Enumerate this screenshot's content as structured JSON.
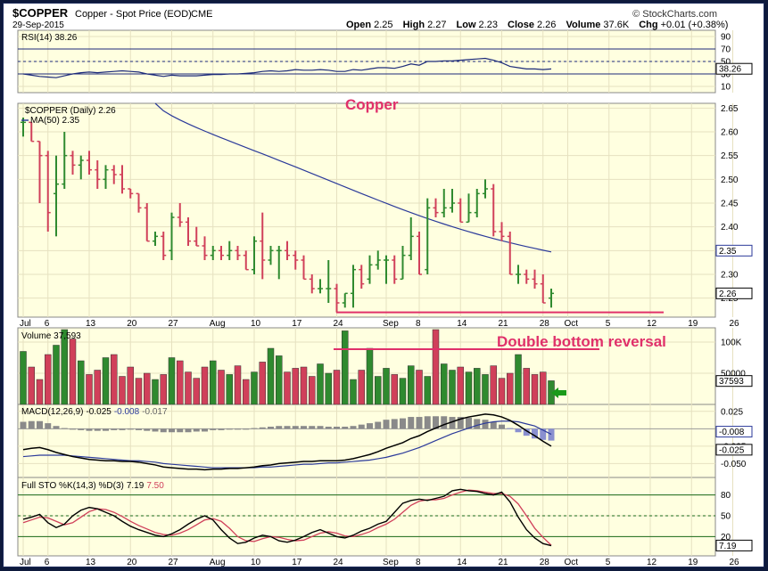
{
  "header": {
    "symbol": "$COPPER",
    "description": "Copper - Spot Price (EOD)",
    "exchange": "CME",
    "date": "29-Sep-2015",
    "watermark": "© StockCharts.com",
    "ohlc": {
      "open_label": "Open",
      "open": "2.25",
      "high_label": "High",
      "high": "2.27",
      "low_label": "Low",
      "low": "2.23",
      "close_label": "Close",
      "close": "2.26",
      "volume_label": "Volume",
      "volume": "37.6K",
      "chg_label": "Chg",
      "chg": "+0.01 (+0.38%)"
    }
  },
  "annotations": {
    "copper": "Copper",
    "double_bottom": "Double bottom reversal"
  },
  "colors": {
    "up": "#2f8a2f",
    "down": "#d0405a",
    "ma": "#2b3a9a",
    "panel_bg": "#ffffe0",
    "annotation": "#e0306a",
    "arrow": "#1a9a1a"
  },
  "chart_data": {
    "type": "ohlc",
    "x_axis": {
      "tick_labels": [
        "Jul",
        "6",
        "13",
        "20",
        "27",
        "Aug",
        "10",
        "17",
        "24",
        "Sep",
        "8",
        "14",
        "21",
        "28",
        "Oct",
        "5",
        "12",
        "19",
        "26"
      ],
      "tick_bars": [
        0,
        3,
        8,
        13,
        18,
        23,
        28,
        33,
        38,
        44,
        48,
        53,
        58,
        63,
        66,
        71,
        76,
        81,
        86
      ]
    },
    "price": {
      "legend": "$COPPER (Daily) 2.26",
      "ma_legend": "MA(50) 2.35",
      "y_ticks": [
        "2.65",
        "2.60",
        "2.55",
        "2.50",
        "2.45",
        "2.40",
        "2.35",
        "2.30",
        "2.25"
      ],
      "ylim": [
        2.21,
        2.66
      ],
      "last_close_label": "2.26",
      "ma_last_label": "2.35",
      "support_level": 2.22,
      "bars": [
        {
          "o": 2.62,
          "h": 2.63,
          "l": 2.59,
          "c": 2.62
        },
        {
          "o": 2.62,
          "h": 2.62,
          "l": 2.58,
          "c": 2.58
        },
        {
          "o": 2.58,
          "h": 2.58,
          "l": 2.45,
          "c": 2.55
        },
        {
          "o": 2.55,
          "h": 2.56,
          "l": 2.39,
          "c": 2.43
        },
        {
          "o": 2.47,
          "h": 2.55,
          "l": 2.38,
          "c": 2.49
        },
        {
          "o": 2.49,
          "h": 2.6,
          "l": 2.48,
          "c": 2.55
        },
        {
          "o": 2.55,
          "h": 2.56,
          "l": 2.51,
          "c": 2.53
        },
        {
          "o": 2.53,
          "h": 2.55,
          "l": 2.5,
          "c": 2.54
        },
        {
          "o": 2.54,
          "h": 2.56,
          "l": 2.51,
          "c": 2.52
        },
        {
          "o": 2.52,
          "h": 2.54,
          "l": 2.48,
          "c": 2.5
        },
        {
          "o": 2.5,
          "h": 2.53,
          "l": 2.48,
          "c": 2.52
        },
        {
          "o": 2.52,
          "h": 2.53,
          "l": 2.49,
          "c": 2.51
        },
        {
          "o": 2.51,
          "h": 2.53,
          "l": 2.47,
          "c": 2.48
        },
        {
          "o": 2.48,
          "h": 2.48,
          "l": 2.46,
          "c": 2.47
        },
        {
          "o": 2.47,
          "h": 2.47,
          "l": 2.43,
          "c": 2.44
        },
        {
          "o": 2.44,
          "h": 2.45,
          "l": 2.37,
          "c": 2.37
        },
        {
          "o": 2.37,
          "h": 2.39,
          "l": 2.36,
          "c": 2.38
        },
        {
          "o": 2.38,
          "h": 2.39,
          "l": 2.33,
          "c": 2.34
        },
        {
          "o": 2.35,
          "h": 2.43,
          "l": 2.33,
          "c": 2.42
        },
        {
          "o": 2.42,
          "h": 2.45,
          "l": 2.4,
          "c": 2.41
        },
        {
          "o": 2.41,
          "h": 2.42,
          "l": 2.36,
          "c": 2.37
        },
        {
          "o": 2.37,
          "h": 2.4,
          "l": 2.36,
          "c": 2.36
        },
        {
          "o": 2.36,
          "h": 2.38,
          "l": 2.33,
          "c": 2.34
        },
        {
          "o": 2.34,
          "h": 2.36,
          "l": 2.33,
          "c": 2.35
        },
        {
          "o": 2.35,
          "h": 2.36,
          "l": 2.33,
          "c": 2.34
        },
        {
          "o": 2.34,
          "h": 2.37,
          "l": 2.33,
          "c": 2.35
        },
        {
          "o": 2.35,
          "h": 2.36,
          "l": 2.33,
          "c": 2.34
        },
        {
          "o": 2.34,
          "h": 2.35,
          "l": 2.31,
          "c": 2.31
        },
        {
          "o": 2.31,
          "h": 2.38,
          "l": 2.3,
          "c": 2.37
        },
        {
          "o": 2.37,
          "h": 2.43,
          "l": 2.29,
          "c": 2.33
        },
        {
          "o": 2.33,
          "h": 2.36,
          "l": 2.32,
          "c": 2.35
        },
        {
          "o": 2.35,
          "h": 2.36,
          "l": 2.29,
          "c": 2.35
        },
        {
          "o": 2.35,
          "h": 2.37,
          "l": 2.33,
          "c": 2.34
        },
        {
          "o": 2.34,
          "h": 2.35,
          "l": 2.31,
          "c": 2.33
        },
        {
          "o": 2.33,
          "h": 2.34,
          "l": 2.29,
          "c": 2.29
        },
        {
          "o": 2.29,
          "h": 2.3,
          "l": 2.26,
          "c": 2.27
        },
        {
          "o": 2.27,
          "h": 2.29,
          "l": 2.26,
          "c": 2.27
        },
        {
          "o": 2.27,
          "h": 2.33,
          "l": 2.24,
          "c": 2.27
        },
        {
          "o": 2.27,
          "h": 2.28,
          "l": 2.22,
          "c": 2.24
        },
        {
          "o": 2.24,
          "h": 2.26,
          "l": 2.23,
          "c": 2.26
        },
        {
          "o": 2.26,
          "h": 2.32,
          "l": 2.23,
          "c": 2.31
        },
        {
          "o": 2.31,
          "h": 2.32,
          "l": 2.27,
          "c": 2.28
        },
        {
          "o": 2.29,
          "h": 2.34,
          "l": 2.28,
          "c": 2.32
        },
        {
          "o": 2.32,
          "h": 2.35,
          "l": 2.31,
          "c": 2.33
        },
        {
          "o": 2.33,
          "h": 2.34,
          "l": 2.28,
          "c": 2.33
        },
        {
          "o": 2.33,
          "h": 2.34,
          "l": 2.28,
          "c": 2.29
        },
        {
          "o": 2.29,
          "h": 2.36,
          "l": 2.29,
          "c": 2.34
        },
        {
          "o": 2.34,
          "h": 2.42,
          "l": 2.33,
          "c": 2.38
        },
        {
          "o": 2.38,
          "h": 2.39,
          "l": 2.3,
          "c": 2.3
        },
        {
          "o": 2.31,
          "h": 2.46,
          "l": 2.3,
          "c": 2.44
        },
        {
          "o": 2.44,
          "h": 2.46,
          "l": 2.42,
          "c": 2.43
        },
        {
          "o": 2.43,
          "h": 2.48,
          "l": 2.42,
          "c": 2.44
        },
        {
          "o": 2.44,
          "h": 2.48,
          "l": 2.43,
          "c": 2.45
        },
        {
          "o": 2.45,
          "h": 2.46,
          "l": 2.41,
          "c": 2.41
        },
        {
          "o": 2.41,
          "h": 2.47,
          "l": 2.41,
          "c": 2.43
        },
        {
          "o": 2.43,
          "h": 2.48,
          "l": 2.42,
          "c": 2.47
        },
        {
          "o": 2.47,
          "h": 2.5,
          "l": 2.46,
          "c": 2.48
        },
        {
          "o": 2.48,
          "h": 2.49,
          "l": 2.38,
          "c": 2.39
        },
        {
          "o": 2.39,
          "h": 2.41,
          "l": 2.37,
          "c": 2.38
        },
        {
          "o": 2.38,
          "h": 2.39,
          "l": 2.3,
          "c": 2.3
        },
        {
          "o": 2.3,
          "h": 2.32,
          "l": 2.28,
          "c": 2.3
        },
        {
          "o": 2.3,
          "h": 2.31,
          "l": 2.28,
          "c": 2.29
        },
        {
          "o": 2.29,
          "h": 2.31,
          "l": 2.27,
          "c": 2.28
        },
        {
          "o": 2.28,
          "h": 2.3,
          "l": 2.24,
          "c": 2.24
        },
        {
          "o": 2.25,
          "h": 2.27,
          "l": 2.23,
          "c": 2.26
        }
      ]
    },
    "rsi": {
      "legend": "RSI(14) 38.26",
      "y_ticks": [
        "90",
        "70",
        "50",
        "30",
        "10"
      ],
      "ylim": [
        0,
        100
      ],
      "levels": [
        70,
        30
      ],
      "last_label": "38.26",
      "values": [
        30,
        28,
        26,
        25,
        24,
        27,
        30,
        32,
        33,
        32,
        33,
        34,
        35,
        34,
        33,
        30,
        28,
        26,
        28,
        27,
        27,
        27,
        28,
        29,
        29,
        30,
        30,
        31,
        32,
        34,
        35,
        34,
        35,
        37,
        36,
        36,
        37,
        36,
        34,
        34,
        37,
        36,
        38,
        40,
        40,
        39,
        42,
        46,
        44,
        50,
        50,
        51,
        51,
        52,
        53,
        54,
        55,
        52,
        48,
        42,
        40,
        38,
        38,
        37,
        38
      ]
    },
    "volume": {
      "legend": "Volume 37,593",
      "y_ticks": [
        "100K",
        "50000"
      ],
      "ylim": [
        0,
        120000
      ],
      "last_label": "37593",
      "values": [
        85000,
        60000,
        40000,
        80000,
        95000,
        120000,
        105000,
        70000,
        48000,
        55000,
        75000,
        80000,
        45000,
        60000,
        42000,
        50000,
        40000,
        48000,
        75000,
        70000,
        52000,
        42000,
        60000,
        70000,
        55000,
        48000,
        62000,
        40000,
        52000,
        68000,
        90000,
        78000,
        52000,
        58000,
        60000,
        45000,
        65000,
        50000,
        55000,
        118000,
        40000,
        55000,
        90000,
        45000,
        58000,
        48000,
        42000,
        62000,
        55000,
        45000,
        120000,
        65000,
        55000,
        60000,
        52000,
        58000,
        48000,
        62000,
        42000,
        50000,
        80000,
        58000,
        48000,
        52000,
        38000
      ]
    },
    "macd": {
      "legend_name": "MACD(12,26,9)",
      "legend_macd": "-0.025",
      "legend_signal": "-0.008",
      "legend_hist": "-0.017",
      "y_ticks": [
        "0.025",
        "-0.025",
        "-0.050"
      ],
      "ylim": [
        -0.07,
        0.035
      ],
      "last_signal_label": "-0.008",
      "last_macd_label": "-0.025",
      "macd": [
        -0.03,
        -0.028,
        -0.027,
        -0.03,
        -0.034,
        -0.037,
        -0.04,
        -0.042,
        -0.044,
        -0.045,
        -0.046,
        -0.046,
        -0.047,
        -0.047,
        -0.048,
        -0.05,
        -0.052,
        -0.055,
        -0.056,
        -0.057,
        -0.058,
        -0.058,
        -0.059,
        -0.058,
        -0.058,
        -0.057,
        -0.057,
        -0.056,
        -0.055,
        -0.053,
        -0.052,
        -0.05,
        -0.049,
        -0.048,
        -0.047,
        -0.047,
        -0.046,
        -0.046,
        -0.046,
        -0.045,
        -0.043,
        -0.04,
        -0.037,
        -0.033,
        -0.028,
        -0.024,
        -0.02,
        -0.014,
        -0.01,
        -0.004,
        0.001,
        0.006,
        0.01,
        0.014,
        0.017,
        0.019,
        0.021,
        0.02,
        0.017,
        0.012,
        0.005,
        -0.003,
        -0.01,
        -0.018,
        -0.025
      ],
      "signal": [
        -0.04,
        -0.039,
        -0.038,
        -0.038,
        -0.038,
        -0.038,
        -0.039,
        -0.04,
        -0.041,
        -0.042,
        -0.043,
        -0.044,
        -0.045,
        -0.046,
        -0.046,
        -0.047,
        -0.048,
        -0.05,
        -0.051,
        -0.052,
        -0.053,
        -0.054,
        -0.055,
        -0.056,
        -0.056,
        -0.056,
        -0.056,
        -0.056,
        -0.056,
        -0.055,
        -0.055,
        -0.054,
        -0.053,
        -0.052,
        -0.051,
        -0.051,
        -0.05,
        -0.049,
        -0.049,
        -0.048,
        -0.047,
        -0.046,
        -0.045,
        -0.043,
        -0.041,
        -0.038,
        -0.035,
        -0.031,
        -0.027,
        -0.022,
        -0.017,
        -0.012,
        -0.007,
        -0.003,
        0.001,
        0.005,
        0.008,
        0.01,
        0.011,
        0.011,
        0.01,
        0.007,
        0.004,
        -0.002,
        -0.008
      ]
    },
    "sto": {
      "legend_name": "Full STO %K(14,3) %D(3)",
      "legend_k": "7.19",
      "legend_d": "7.50",
      "y_ticks": [
        "80",
        "50",
        "20"
      ],
      "ylim": [
        0,
        100
      ],
      "levels": [
        80,
        50,
        20
      ],
      "last_label": "7.19",
      "k": [
        45,
        48,
        52,
        40,
        33,
        38,
        50,
        58,
        62,
        60,
        55,
        50,
        42,
        35,
        30,
        26,
        22,
        20,
        24,
        30,
        38,
        45,
        50,
        44,
        30,
        18,
        10,
        12,
        18,
        22,
        20,
        14,
        12,
        15,
        20,
        26,
        30,
        25,
        20,
        18,
        22,
        28,
        32,
        38,
        42,
        55,
        68,
        72,
        74,
        72,
        75,
        78,
        86,
        88,
        86,
        85,
        82,
        80,
        84,
        70,
        48,
        30,
        18,
        10,
        7
      ],
      "d": [
        40,
        44,
        48,
        47,
        42,
        37,
        40,
        48,
        56,
        60,
        59,
        55,
        49,
        42,
        36,
        31,
        26,
        23,
        22,
        25,
        30,
        37,
        44,
        46,
        42,
        32,
        20,
        14,
        13,
        17,
        20,
        19,
        16,
        14,
        15,
        20,
        25,
        27,
        25,
        21,
        20,
        23,
        27,
        33,
        38,
        45,
        55,
        65,
        71,
        73,
        73,
        75,
        80,
        84,
        87,
        86,
        84,
        82,
        82,
        78,
        67,
        50,
        32,
        19,
        7.5
      ]
    }
  }
}
